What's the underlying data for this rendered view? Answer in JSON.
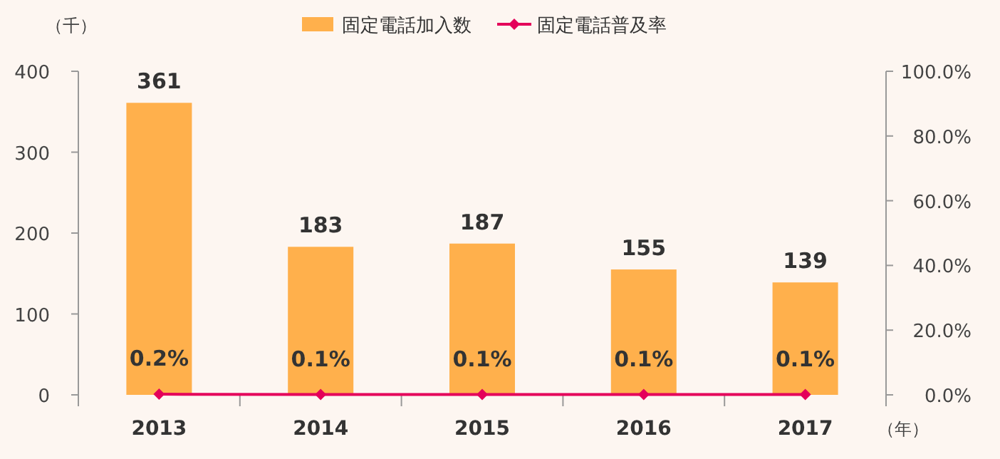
{
  "chart_data": {
    "type": "bar",
    "categories": [
      "2013",
      "2014",
      "2015",
      "2016",
      "2017"
    ],
    "series": [
      {
        "name": "固定電話加入数",
        "color": "#ffb04c",
        "values": [
          361,
          183,
          187,
          155,
          139
        ],
        "value_labels": [
          "361",
          "183",
          "187",
          "155",
          "139"
        ]
      },
      {
        "name": "固定電話普及率",
        "type": "line",
        "axis": "y2",
        "color": "#e4005a",
        "marker": "diamond",
        "values": [
          0.2,
          0.1,
          0.1,
          0.1,
          0.1
        ],
        "value_labels": [
          "0.2%",
          "0.1%",
          "0.1%",
          "0.1%",
          "0.1%"
        ]
      }
    ],
    "ylabel": "（千）",
    "xlabel": "（年）",
    "ylim": [
      0,
      400
    ],
    "yticks": [
      0,
      100,
      200,
      300,
      400
    ],
    "y2lim": [
      0,
      100
    ],
    "y2ticks": [
      {
        "value": 0,
        "label": "0.0%"
      },
      {
        "value": 20,
        "label": "20.0%"
      },
      {
        "value": 40,
        "label": "40.0%"
      },
      {
        "value": 60,
        "label": "60.0%"
      },
      {
        "value": 80,
        "label": "80.0%"
      },
      {
        "value": 100,
        "label": "100.0%"
      }
    ],
    "legend": "top"
  }
}
